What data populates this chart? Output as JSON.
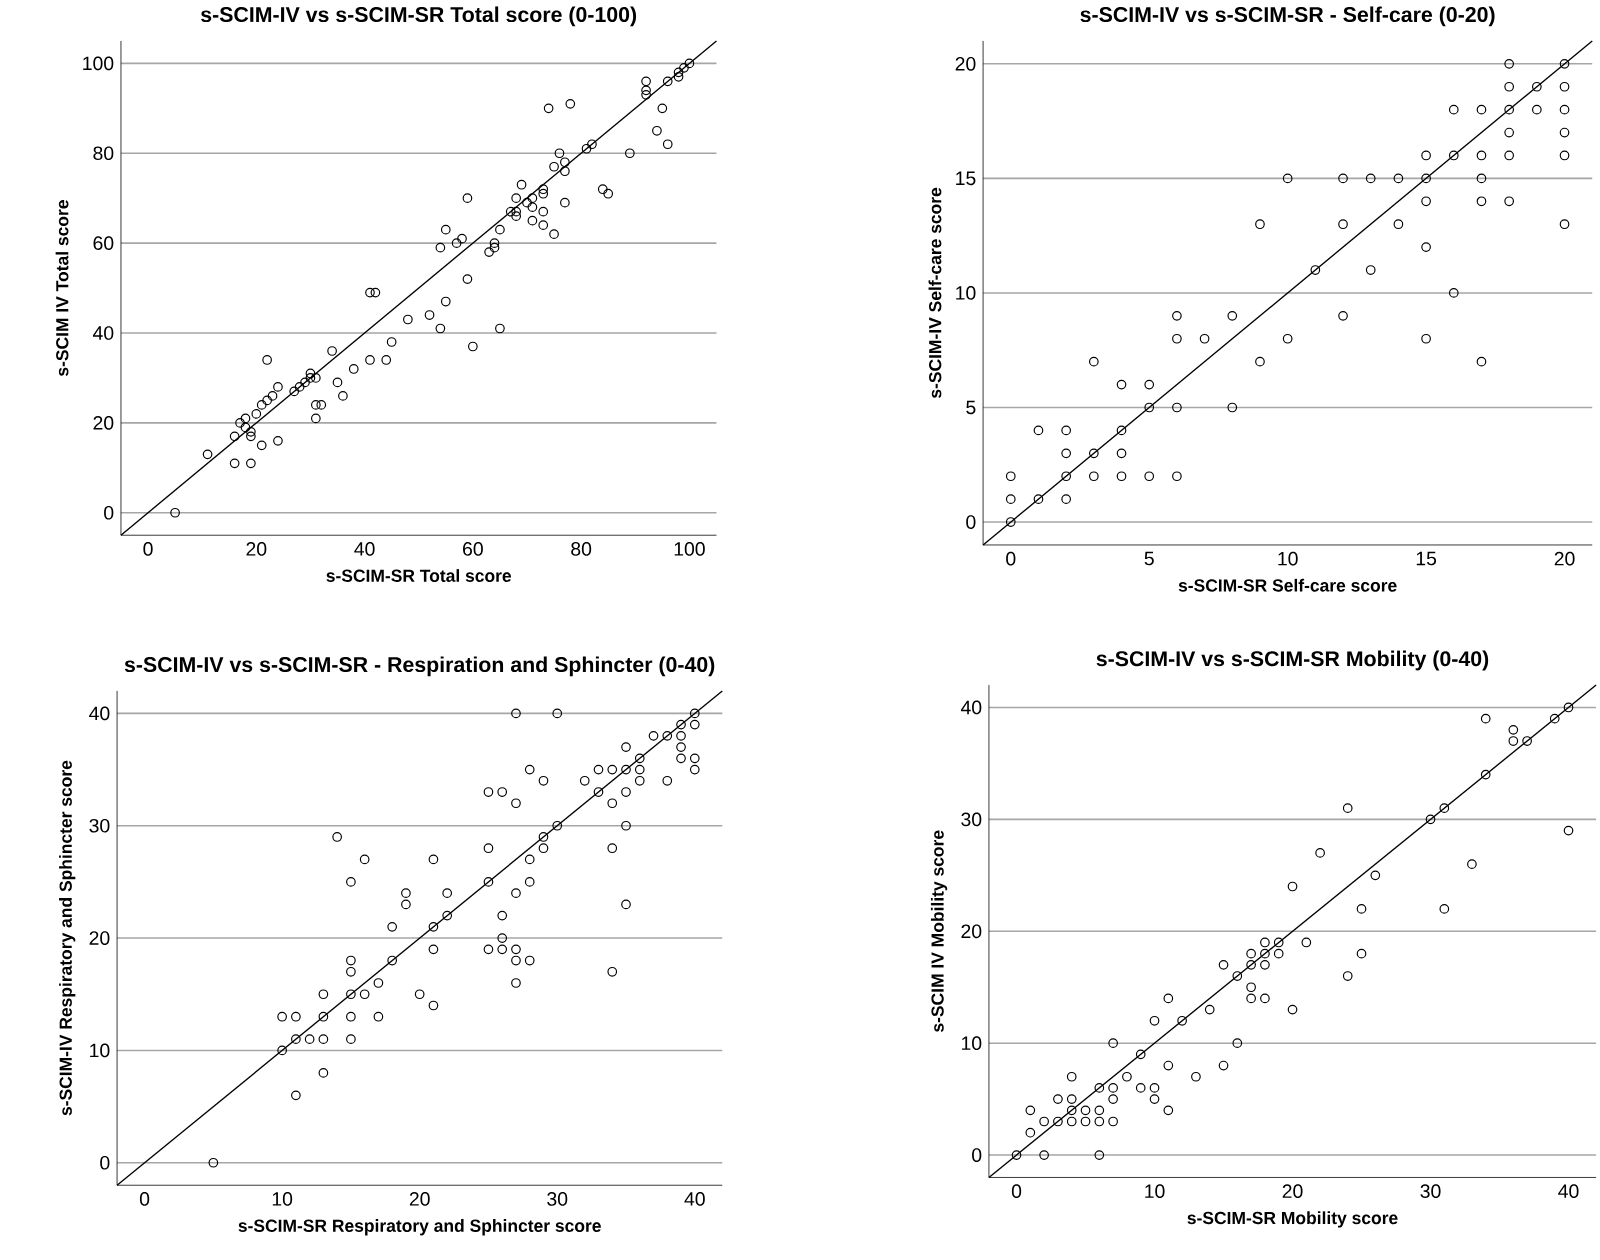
{
  "chart_data": [
    {
      "type": "scatter",
      "title": "s-SCIM-IV vs s-SCIM-SR Total score (0-100)",
      "xlabel": "s-SCIM-SR Total score",
      "ylabel": "s-SCIM IV Total score",
      "xlim": [
        -5,
        105
      ],
      "ylim": [
        -5,
        105
      ],
      "xticks": [
        0,
        20,
        40,
        60,
        80,
        100
      ],
      "yticks": [
        0,
        20,
        40,
        60,
        80,
        100
      ],
      "grid": "y",
      "series": [
        {
          "marker": "circle",
          "color": "#000000",
          "x": [
            5,
            11,
            16,
            16,
            17,
            18,
            18,
            19,
            19,
            19,
            20,
            21,
            21,
            22,
            22,
            23,
            24,
            24,
            27,
            28,
            29,
            30,
            30,
            31,
            31,
            31,
            32,
            34,
            35,
            36,
            38,
            41,
            41,
            42,
            44,
            45,
            48,
            52,
            54,
            54,
            55,
            55,
            57,
            58,
            59,
            59,
            60,
            63,
            64,
            64,
            65,
            65,
            67,
            68,
            68,
            68,
            69,
            70,
            71,
            71,
            71,
            73,
            73,
            73,
            73,
            75,
            75,
            74,
            76,
            77,
            77,
            77,
            78,
            81,
            82,
            84,
            85,
            89,
            92,
            92,
            92,
            94,
            95,
            96,
            96,
            98,
            98,
            99,
            100
          ],
          "values": [
            0,
            13,
            17,
            11,
            20,
            21,
            19,
            17,
            18,
            11,
            22,
            15,
            24,
            34,
            25,
            26,
            28,
            16,
            27,
            28,
            29,
            31,
            30,
            30,
            21,
            24,
            24,
            36,
            29,
            26,
            32,
            34,
            49,
            49,
            34,
            38,
            43,
            44,
            41,
            59,
            63,
            47,
            60,
            61,
            70,
            52,
            37,
            58,
            59,
            60,
            63,
            41,
            67,
            66,
            67,
            70,
            73,
            69,
            68,
            65,
            70,
            71,
            72,
            67,
            64,
            62,
            77,
            90,
            80,
            78,
            76,
            69,
            91,
            81,
            82,
            72,
            71,
            80,
            96,
            93,
            94,
            85,
            90,
            82,
            96,
            97,
            98,
            99,
            100
          ]
        },
        {
          "type": "line",
          "marker": "none",
          "color": "#000000",
          "x": [
            -5,
            105
          ],
          "values": [
            -5,
            105
          ]
        }
      ]
    },
    {
      "type": "scatter",
      "title": "s-SCIM-IV vs s-SCIM-SR - Self-care (0-20)",
      "xlabel": "s-SCIM-SR Self-care score",
      "ylabel": "s-SCIM-IV Self-care score",
      "xlim": [
        -1,
        21
      ],
      "ylim": [
        -1,
        21
      ],
      "xticks": [
        0,
        5,
        10,
        15,
        20
      ],
      "yticks": [
        0,
        5,
        10,
        15,
        20
      ],
      "grid": "y",
      "series": [
        {
          "marker": "circle",
          "color": "#000000",
          "x": [
            0,
            0,
            0,
            1,
            1,
            2,
            2,
            2,
            2,
            3,
            3,
            3,
            4,
            4,
            4,
            4,
            5,
            5,
            5,
            6,
            6,
            6,
            6,
            7,
            8,
            8,
            9,
            9,
            10,
            10,
            11,
            12,
            12,
            12,
            13,
            13,
            14,
            14,
            15,
            15,
            15,
            15,
            15,
            16,
            16,
            16,
            17,
            17,
            17,
            17,
            17,
            18,
            18,
            18,
            18,
            18,
            18,
            19,
            19,
            20,
            20,
            20,
            20,
            20,
            20
          ],
          "values": [
            0,
            1,
            2,
            1,
            4,
            1,
            2,
            3,
            4,
            2,
            3,
            7,
            2,
            3,
            4,
            6,
            2,
            5,
            6,
            2,
            5,
            8,
            9,
            8,
            5,
            9,
            7,
            13,
            8,
            15,
            11,
            9,
            13,
            15,
            11,
            15,
            13,
            15,
            8,
            12,
            14,
            15,
            16,
            10,
            16,
            18,
            7,
            14,
            15,
            16,
            18,
            14,
            16,
            17,
            18,
            19,
            20,
            18,
            19,
            13,
            16,
            17,
            18,
            19,
            20
          ]
        },
        {
          "type": "line",
          "marker": "none",
          "color": "#000000",
          "x": [
            -1,
            21
          ],
          "values": [
            -1,
            21
          ]
        }
      ]
    },
    {
      "type": "scatter",
      "title": "s-SCIM-IV vs s-SCIM-SR - Respiration and Sphincter (0-40)",
      "xlabel": "s-SCIM-SR Respiratory and Sphincter score",
      "ylabel": "s-SCIM-IV Respiratory and Sphincter score",
      "xlim": [
        -2,
        42
      ],
      "ylim": [
        -2,
        42
      ],
      "xticks": [
        0,
        10,
        20,
        30,
        40
      ],
      "yticks": [
        0,
        10,
        20,
        30,
        40
      ],
      "grid": "y",
      "series": [
        {
          "marker": "circle",
          "color": "#000000",
          "x": [
            5,
            10,
            10,
            11,
            11,
            11,
            12,
            13,
            13,
            13,
            13,
            14,
            15,
            15,
            15,
            15,
            15,
            15,
            16,
            16,
            17,
            17,
            18,
            18,
            19,
            19,
            20,
            21,
            21,
            21,
            21,
            22,
            22,
            25,
            25,
            25,
            25,
            26,
            26,
            26,
            26,
            27,
            27,
            27,
            27,
            27,
            27,
            28,
            28,
            28,
            28,
            29,
            29,
            29,
            30,
            30,
            32,
            33,
            33,
            34,
            34,
            34,
            34,
            35,
            35,
            35,
            35,
            35,
            36,
            36,
            36,
            37,
            38,
            38,
            39,
            39,
            39,
            39,
            40,
            40,
            40,
            40
          ],
          "values": [
            0,
            13,
            10,
            13,
            11,
            6,
            11,
            15,
            13,
            11,
            8,
            29,
            25,
            18,
            17,
            15,
            13,
            11,
            27,
            15,
            16,
            13,
            21,
            18,
            24,
            23,
            15,
            27,
            21,
            19,
            14,
            24,
            22,
            33,
            28,
            25,
            19,
            33,
            22,
            20,
            19,
            40,
            32,
            24,
            19,
            18,
            16,
            35,
            27,
            25,
            18,
            34,
            29,
            28,
            40,
            30,
            34,
            35,
            33,
            35,
            32,
            28,
            17,
            37,
            35,
            33,
            30,
            23,
            36,
            35,
            34,
            38,
            38,
            34,
            39,
            38,
            37,
            36,
            40,
            39,
            36,
            35
          ]
        },
        {
          "type": "line",
          "marker": "none",
          "color": "#000000",
          "x": [
            -2,
            42
          ],
          "values": [
            -2,
            42
          ]
        }
      ]
    },
    {
      "type": "scatter",
      "title": "s-SCIM-IV vs s-SCIM-SR Mobility (0-40)",
      "xlabel": "s-SCIM-SR Mobility score",
      "ylabel": "s-SCIM IV Mobility score",
      "xlim": [
        -2,
        42
      ],
      "ylim": [
        -2,
        42
      ],
      "xticks": [
        0,
        10,
        20,
        30,
        40
      ],
      "yticks": [
        0,
        10,
        20,
        30,
        40
      ],
      "grid": "y",
      "series": [
        {
          "marker": "circle",
          "color": "#000000",
          "x": [
            0,
            1,
            1,
            2,
            2,
            3,
            3,
            4,
            4,
            4,
            4,
            5,
            5,
            6,
            6,
            6,
            6,
            7,
            7,
            7,
            7,
            8,
            9,
            9,
            10,
            10,
            10,
            11,
            11,
            11,
            12,
            13,
            14,
            15,
            15,
            16,
            16,
            17,
            17,
            17,
            17,
            18,
            18,
            18,
            18,
            19,
            19,
            20,
            20,
            21,
            22,
            24,
            24,
            25,
            25,
            26,
            30,
            31,
            31,
            33,
            34,
            34,
            36,
            36,
            37,
            39,
            40,
            40
          ],
          "values": [
            0,
            4,
            2,
            3,
            0,
            5,
            3,
            7,
            5,
            4,
            3,
            4,
            3,
            6,
            4,
            3,
            0,
            10,
            6,
            5,
            3,
            7,
            9,
            6,
            12,
            6,
            5,
            14,
            8,
            4,
            12,
            7,
            13,
            17,
            8,
            16,
            10,
            18,
            17,
            15,
            14,
            19,
            18,
            17,
            14,
            19,
            18,
            24,
            13,
            19,
            27,
            31,
            16,
            22,
            18,
            25,
            30,
            31,
            22,
            26,
            39,
            34,
            38,
            37,
            37,
            39,
            40,
            29
          ]
        },
        {
          "type": "line",
          "marker": "none",
          "color": "#000000",
          "x": [
            -2,
            42
          ],
          "values": [
            -2,
            42
          ]
        }
      ]
    }
  ]
}
